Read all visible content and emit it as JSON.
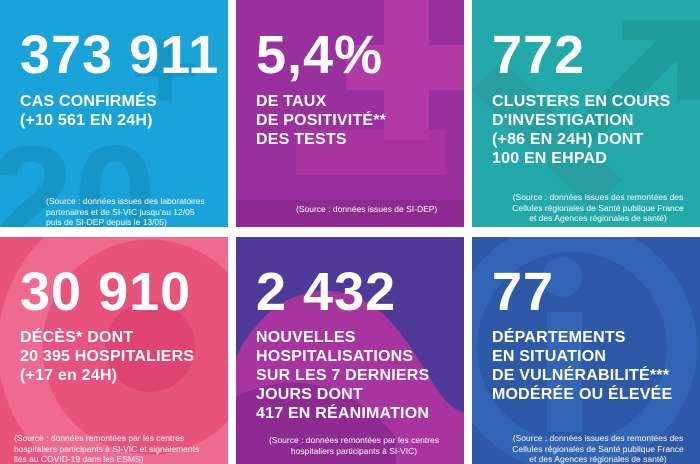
{
  "tiles": [
    {
      "number": "373 911",
      "label": "CAS CONFIRMÉS\n(+10 561 EN 24H)",
      "source": "(Source : données issues des laboratoires\npartenaires et de SI-VIC jusqu'au 12/05\npuis de SI-DEP depuis le 13/05)",
      "color": "#1aa3d9"
    },
    {
      "number": "5,4%",
      "label": "DE TAUX\nDE POSITIVITÉ**\nDES TESTS",
      "source": "(Source : données issues de SI-DEP)",
      "color": "#9a2f9e"
    },
    {
      "number": "772",
      "label": "CLUSTERS EN COURS\nD'INVESTIGATION\n(+86 EN 24H) DONT\n100 EN EHPAD",
      "source": "(Source : données issues des remontées des\nCellules régionales de Santé publique France\net des Agences régionales de santé)",
      "color": "#23a9a9"
    },
    {
      "number": "30 910",
      "label": "DÉCÈS* DONT\n20 395 HOSPITALIERS\n(+17 en 24H)",
      "source": "(Source : données remontées par les centres\nhospitaliers participants à SI-VIC et signalements\nliés au COVID-19 dans les ESMS)",
      "color": "#e8537b"
    },
    {
      "number": "2 432",
      "label": "NOUVELLES\nHOSPITALISATIONS\nSUR LES 7 DERNIERS\nJOURS DONT\n417 EN RÉANIMATION",
      "source": "(Source : données remontées par les centres\nhospitaliers participants à SI-VIC)",
      "color": "#4f3a99"
    },
    {
      "number": "77",
      "label": "DÉPARTEMENTS\nEN SITUATION\nDE VULNÉRABILITÉ***\nMODÉRÉE OU ÉLEVÉE",
      "source": "(Source : données issues des remontées des\nCellules régionales de Santé publique France\net des Agences régionales de santé)",
      "color": "#2e59a8"
    }
  ]
}
